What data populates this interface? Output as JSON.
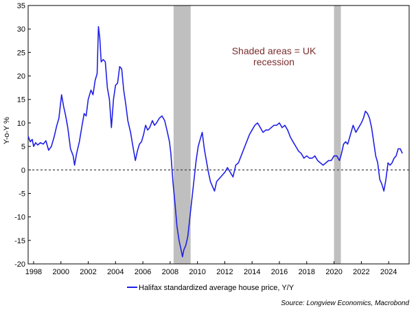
{
  "chart_data": {
    "type": "line",
    "title": "",
    "xlabel": "",
    "ylabel": "Y-o-Y %",
    "xlim": [
      1997.6,
      2025.5
    ],
    "ylim": [
      -20,
      35
    ],
    "x_ticks": [
      1998,
      2000,
      2002,
      2004,
      2006,
      2008,
      2010,
      2012,
      2014,
      2016,
      2018,
      2020,
      2022,
      2024
    ],
    "y_ticks": [
      -20,
      -15,
      -10,
      -5,
      0,
      5,
      10,
      15,
      20,
      25,
      30,
      35
    ],
    "grid": false,
    "zero_line": {
      "y": 0,
      "style": "dashed"
    },
    "legend_position": "bottom",
    "annotation": "Shaded areas = UK\nrecession",
    "source": "Source: Longview Economics, Macrobond",
    "colors": {
      "series": "#1f1fe6",
      "recession": "#bfbfbf",
      "annotation": "#7b2d2d"
    },
    "recessions": [
      [
        2008.25,
        2009.5
      ],
      [
        2020.0,
        2020.5
      ]
    ],
    "series": [
      {
        "name": "Halifax standardized average house price, Y/Y",
        "points": [
          [
            1997.6,
            7.2
          ],
          [
            1997.75,
            6.0
          ],
          [
            1997.9,
            6.5
          ],
          [
            1998.0,
            5.0
          ],
          [
            1998.15,
            5.8
          ],
          [
            1998.3,
            5.3
          ],
          [
            1998.5,
            5.8
          ],
          [
            1998.7,
            5.5
          ],
          [
            1998.9,
            6.2
          ],
          [
            1999.1,
            4.2
          ],
          [
            1999.3,
            5.0
          ],
          [
            1999.5,
            7.0
          ],
          [
            1999.7,
            9.5
          ],
          [
            1999.85,
            11.0
          ],
          [
            2000.05,
            16.0
          ],
          [
            2000.2,
            13.5
          ],
          [
            2000.35,
            11.5
          ],
          [
            2000.5,
            9.0
          ],
          [
            2000.7,
            4.5
          ],
          [
            2000.9,
            3.0
          ],
          [
            2001.0,
            1.0
          ],
          [
            2001.15,
            3.5
          ],
          [
            2001.35,
            6.0
          ],
          [
            2001.55,
            9.5
          ],
          [
            2001.7,
            12.0
          ],
          [
            2001.85,
            11.5
          ],
          [
            2002.0,
            15.0
          ],
          [
            2002.2,
            17.0
          ],
          [
            2002.35,
            16.0
          ],
          [
            2002.5,
            19.0
          ],
          [
            2002.65,
            20.5
          ],
          [
            2002.75,
            30.5
          ],
          [
            2002.85,
            28.0
          ],
          [
            2002.95,
            23.0
          ],
          [
            2003.1,
            23.5
          ],
          [
            2003.25,
            23.0
          ],
          [
            2003.4,
            17.5
          ],
          [
            2003.55,
            15.0
          ],
          [
            2003.7,
            9.0
          ],
          [
            2003.85,
            15.0
          ],
          [
            2004.0,
            18.0
          ],
          [
            2004.15,
            18.5
          ],
          [
            2004.3,
            22.0
          ],
          [
            2004.45,
            21.5
          ],
          [
            2004.6,
            17.0
          ],
          [
            2004.75,
            14.0
          ],
          [
            2004.9,
            10.5
          ],
          [
            2005.1,
            8.0
          ],
          [
            2005.3,
            4.5
          ],
          [
            2005.45,
            2.0
          ],
          [
            2005.6,
            4.0
          ],
          [
            2005.75,
            5.5
          ],
          [
            2005.9,
            6.0
          ],
          [
            2006.05,
            7.5
          ],
          [
            2006.2,
            9.5
          ],
          [
            2006.35,
            8.5
          ],
          [
            2006.5,
            9.0
          ],
          [
            2006.7,
            10.5
          ],
          [
            2006.85,
            9.5
          ],
          [
            2007.0,
            10.0
          ],
          [
            2007.2,
            11.0
          ],
          [
            2007.4,
            11.5
          ],
          [
            2007.6,
            10.5
          ],
          [
            2007.8,
            8.0
          ],
          [
            2007.95,
            6.0
          ],
          [
            2008.05,
            3.5
          ],
          [
            2008.2,
            -2.5
          ],
          [
            2008.35,
            -7.0
          ],
          [
            2008.5,
            -12.0
          ],
          [
            2008.65,
            -15.0
          ],
          [
            2008.8,
            -17.0
          ],
          [
            2008.9,
            -18.5
          ],
          [
            2009.0,
            -17.0
          ],
          [
            2009.15,
            -16.0
          ],
          [
            2009.3,
            -14.0
          ],
          [
            2009.45,
            -10.0
          ],
          [
            2009.6,
            -6.0
          ],
          [
            2009.75,
            -2.0
          ],
          [
            2009.9,
            2.0
          ],
          [
            2010.05,
            5.0
          ],
          [
            2010.2,
            6.5
          ],
          [
            2010.35,
            8.0
          ],
          [
            2010.5,
            4.5
          ],
          [
            2010.65,
            2.0
          ],
          [
            2010.8,
            -0.5
          ],
          [
            2010.95,
            -2.5
          ],
          [
            2011.1,
            -3.5
          ],
          [
            2011.25,
            -4.5
          ],
          [
            2011.4,
            -2.5
          ],
          [
            2011.55,
            -2.0
          ],
          [
            2011.7,
            -1.5
          ],
          [
            2011.85,
            -1.0
          ],
          [
            2012.0,
            -0.5
          ],
          [
            2012.2,
            0.5
          ],
          [
            2012.4,
            -0.5
          ],
          [
            2012.6,
            -1.5
          ],
          [
            2012.8,
            1.0
          ],
          [
            2013.0,
            1.5
          ],
          [
            2013.2,
            3.0
          ],
          [
            2013.4,
            4.5
          ],
          [
            2013.6,
            6.0
          ],
          [
            2013.8,
            7.5
          ],
          [
            2014.0,
            8.5
          ],
          [
            2014.2,
            9.5
          ],
          [
            2014.4,
            10.0
          ],
          [
            2014.6,
            9.0
          ],
          [
            2014.8,
            8.0
          ],
          [
            2015.0,
            8.5
          ],
          [
            2015.2,
            8.5
          ],
          [
            2015.4,
            9.0
          ],
          [
            2015.6,
            9.5
          ],
          [
            2015.8,
            9.5
          ],
          [
            2016.0,
            10.0
          ],
          [
            2016.2,
            9.0
          ],
          [
            2016.4,
            9.5
          ],
          [
            2016.6,
            8.5
          ],
          [
            2016.8,
            7.0
          ],
          [
            2017.0,
            6.0
          ],
          [
            2017.2,
            5.0
          ],
          [
            2017.4,
            4.0
          ],
          [
            2017.6,
            3.5
          ],
          [
            2017.8,
            2.5
          ],
          [
            2018.0,
            3.0
          ],
          [
            2018.2,
            2.5
          ],
          [
            2018.4,
            2.5
          ],
          [
            2018.6,
            3.0
          ],
          [
            2018.8,
            2.0
          ],
          [
            2019.0,
            1.5
          ],
          [
            2019.2,
            1.0
          ],
          [
            2019.4,
            1.5
          ],
          [
            2019.6,
            2.0
          ],
          [
            2019.8,
            2.0
          ],
          [
            2020.0,
            3.0
          ],
          [
            2020.2,
            3.0
          ],
          [
            2020.4,
            2.0
          ],
          [
            2020.55,
            3.5
          ],
          [
            2020.7,
            5.5
          ],
          [
            2020.85,
            6.0
          ],
          [
            2021.0,
            5.5
          ],
          [
            2021.2,
            7.5
          ],
          [
            2021.4,
            9.5
          ],
          [
            2021.6,
            8.0
          ],
          [
            2021.8,
            9.0
          ],
          [
            2022.0,
            10.0
          ],
          [
            2022.15,
            11.0
          ],
          [
            2022.3,
            12.5
          ],
          [
            2022.45,
            12.0
          ],
          [
            2022.6,
            11.0
          ],
          [
            2022.75,
            9.0
          ],
          [
            2022.9,
            6.0
          ],
          [
            2023.05,
            3.0
          ],
          [
            2023.2,
            1.5
          ],
          [
            2023.35,
            -2.0
          ],
          [
            2023.5,
            -3.0
          ],
          [
            2023.65,
            -4.5
          ],
          [
            2023.8,
            -2.0
          ],
          [
            2023.95,
            1.5
          ],
          [
            2024.1,
            1.0
          ],
          [
            2024.25,
            1.5
          ],
          [
            2024.4,
            2.5
          ],
          [
            2024.55,
            3.0
          ],
          [
            2024.7,
            4.5
          ],
          [
            2024.85,
            4.5
          ],
          [
            2025.0,
            3.5
          ]
        ]
      }
    ]
  }
}
